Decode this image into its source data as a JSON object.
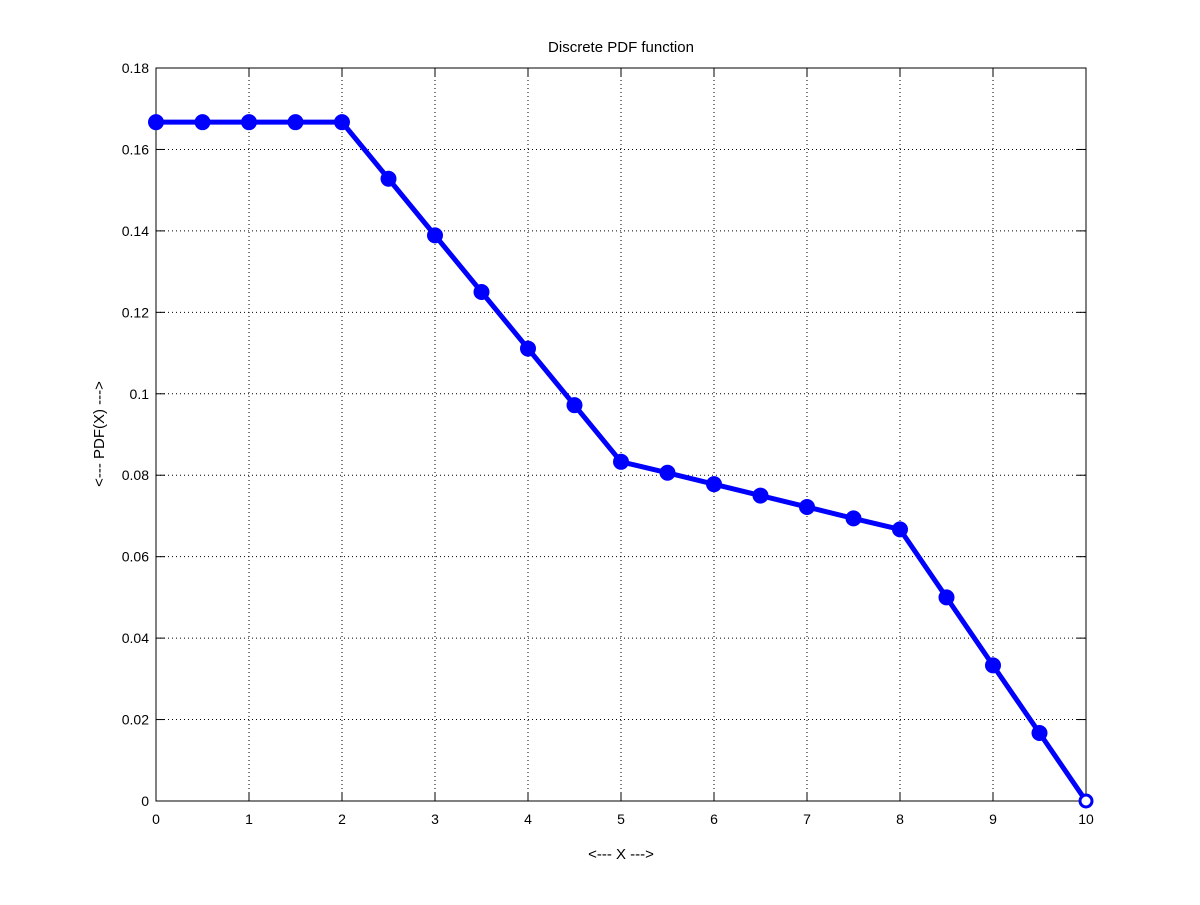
{
  "figure": {
    "background": "#ffffff"
  },
  "chart_data": {
    "type": "line",
    "title": "Discrete PDF function",
    "xlabel": "<--- X --->",
    "ylabel": "<--- PDF(X) --->",
    "xlim": [
      0,
      10
    ],
    "ylim": [
      0,
      0.18
    ],
    "x_ticks": [
      0,
      1,
      2,
      3,
      4,
      5,
      6,
      7,
      8,
      9,
      10
    ],
    "x_tick_labels": [
      "0",
      "1",
      "2",
      "3",
      "4",
      "5",
      "6",
      "7",
      "8",
      "9",
      "10"
    ],
    "y_ticks": [
      0,
      0.02,
      0.04,
      0.06,
      0.08,
      0.1,
      0.12,
      0.14,
      0.16,
      0.18
    ],
    "y_tick_labels": [
      "0",
      "0.02",
      "0.04",
      "0.06",
      "0.08",
      "0.1",
      "0.12",
      "0.14",
      "0.16",
      "0.18"
    ],
    "grid": true,
    "grid_style": "dotted",
    "legend": false,
    "series": [
      {
        "color": "#0000ff",
        "marker": "circle",
        "x": [
          0,
          0.5,
          1,
          1.5,
          2,
          2.5,
          3,
          3.5,
          4,
          4.5,
          5,
          5.5,
          6,
          6.5,
          7,
          7.5,
          8,
          8.5,
          9,
          9.5,
          10
        ],
        "y": [
          0.1667,
          0.1667,
          0.1667,
          0.1667,
          0.1667,
          0.1528,
          0.1389,
          0.125,
          0.1111,
          0.0972,
          0.0833,
          0.0806,
          0.0778,
          0.075,
          0.0722,
          0.0694,
          0.0667,
          0.05,
          0.0333,
          0.0167,
          0
        ]
      }
    ]
  }
}
